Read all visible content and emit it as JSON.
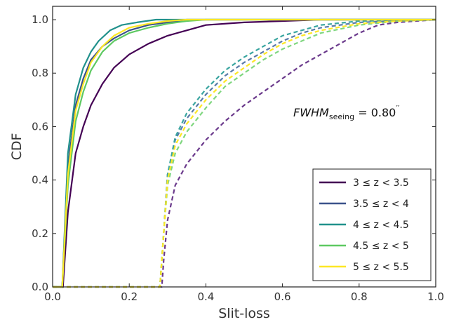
{
  "chart_data": {
    "type": "line",
    "xlabel": "Slit-loss",
    "ylabel": "CDF",
    "xlim": [
      0.0,
      1.0
    ],
    "ylim": [
      0.0,
      1.05
    ],
    "xticks": [
      "0.0",
      "0.2",
      "0.4",
      "0.6",
      "0.8",
      "1.0"
    ],
    "yticks": [
      "0.0",
      "0.2",
      "0.4",
      "0.6",
      "0.8",
      "1.0"
    ],
    "grid": false,
    "legend_position": "lower-right",
    "annotation": {
      "main": "FWHM",
      "sub": "seeing",
      "rest": " = 0.80",
      "sup": "′′"
    },
    "series": [
      {
        "name": "3 ≤ z < 3.5",
        "color": "#440154",
        "style": "solid",
        "x": [
          0.0,
          0.027,
          0.04,
          0.06,
          0.08,
          0.1,
          0.13,
          0.16,
          0.2,
          0.25,
          0.3,
          0.35,
          0.4,
          0.5,
          0.6,
          0.7,
          1.0
        ],
        "y": [
          0.0,
          0.0,
          0.28,
          0.5,
          0.6,
          0.68,
          0.76,
          0.82,
          0.87,
          0.91,
          0.94,
          0.96,
          0.98,
          0.99,
          0.995,
          1.0,
          1.0
        ]
      },
      {
        "name": "3 ≤ z < 3.5",
        "color": "#6b3a8c",
        "style": "dashed",
        "x": [
          0.0,
          0.285,
          0.29,
          0.3,
          0.32,
          0.35,
          0.4,
          0.45,
          0.5,
          0.55,
          0.6,
          0.65,
          0.7,
          0.75,
          0.8,
          0.85,
          0.9,
          1.0
        ],
        "y": [
          0.0,
          0.0,
          0.1,
          0.25,
          0.38,
          0.46,
          0.55,
          0.62,
          0.68,
          0.73,
          0.78,
          0.83,
          0.87,
          0.91,
          0.95,
          0.98,
          0.99,
          1.0
        ]
      },
      {
        "name": "3.5 ≤ z < 4",
        "color": "#3b528b",
        "style": "solid",
        "x": [
          0.0,
          0.025,
          0.04,
          0.06,
          0.08,
          0.1,
          0.13,
          0.16,
          0.2,
          0.25,
          0.3,
          0.35,
          0.4,
          1.0
        ],
        "y": [
          0.0,
          0.0,
          0.45,
          0.68,
          0.78,
          0.85,
          0.9,
          0.93,
          0.96,
          0.98,
          0.99,
          1.0,
          1.0,
          1.0
        ]
      },
      {
        "name": "3.5 ≤ z < 4",
        "color": "#5a7aa8",
        "style": "dashed",
        "x": [
          0.0,
          0.28,
          0.29,
          0.3,
          0.32,
          0.35,
          0.4,
          0.45,
          0.5,
          0.55,
          0.6,
          0.65,
          0.7,
          0.8,
          0.9,
          1.0
        ],
        "y": [
          0.0,
          0.0,
          0.2,
          0.42,
          0.55,
          0.63,
          0.72,
          0.79,
          0.84,
          0.88,
          0.92,
          0.95,
          0.97,
          0.99,
          0.995,
          1.0
        ]
      },
      {
        "name": "4 ≤ z < 4.5",
        "color": "#21918c",
        "style": "solid",
        "x": [
          0.0,
          0.025,
          0.04,
          0.06,
          0.08,
          0.1,
          0.12,
          0.15,
          0.18,
          0.22,
          0.27,
          0.32,
          1.0
        ],
        "y": [
          0.0,
          0.0,
          0.5,
          0.72,
          0.82,
          0.88,
          0.92,
          0.96,
          0.98,
          0.99,
          1.0,
          1.0,
          1.0
        ]
      },
      {
        "name": "4 ≤ z < 4.5",
        "color": "#3aa5a0",
        "style": "dashed",
        "x": [
          0.0,
          0.28,
          0.29,
          0.3,
          0.32,
          0.35,
          0.4,
          0.45,
          0.5,
          0.55,
          0.6,
          0.65,
          0.7,
          0.8,
          1.0
        ],
        "y": [
          0.0,
          0.0,
          0.2,
          0.42,
          0.56,
          0.65,
          0.74,
          0.81,
          0.86,
          0.9,
          0.94,
          0.96,
          0.98,
          0.995,
          1.0
        ]
      },
      {
        "name": "4.5 ≤ z < 5",
        "color": "#5ec962",
        "style": "solid",
        "x": [
          0.0,
          0.025,
          0.04,
          0.06,
          0.08,
          0.1,
          0.13,
          0.16,
          0.2,
          0.25,
          0.3,
          0.35,
          0.4,
          1.0
        ],
        "y": [
          0.0,
          0.0,
          0.38,
          0.62,
          0.73,
          0.81,
          0.88,
          0.92,
          0.95,
          0.97,
          0.985,
          0.995,
          1.0,
          1.0
        ]
      },
      {
        "name": "4.5 ≤ z < 5",
        "color": "#7fd67f",
        "style": "dashed",
        "x": [
          0.0,
          0.28,
          0.29,
          0.3,
          0.32,
          0.35,
          0.4,
          0.45,
          0.5,
          0.55,
          0.6,
          0.65,
          0.7,
          0.8,
          0.9,
          1.0
        ],
        "y": [
          0.0,
          0.0,
          0.2,
          0.38,
          0.5,
          0.58,
          0.67,
          0.75,
          0.8,
          0.85,
          0.89,
          0.92,
          0.95,
          0.98,
          0.995,
          1.0
        ]
      },
      {
        "name": "5 ≤ z < 5.5",
        "color": "#fde725",
        "style": "solid",
        "x": [
          0.0,
          0.025,
          0.04,
          0.06,
          0.08,
          0.1,
          0.13,
          0.16,
          0.2,
          0.25,
          0.3,
          0.35,
          1.0
        ],
        "y": [
          0.0,
          0.0,
          0.42,
          0.66,
          0.76,
          0.84,
          0.9,
          0.94,
          0.97,
          0.985,
          0.995,
          1.0,
          1.0
        ]
      },
      {
        "name": "5 ≤ z < 5.5",
        "color": "#fde725",
        "style": "dashed",
        "x": [
          0.0,
          0.28,
          0.29,
          0.3,
          0.32,
          0.35,
          0.4,
          0.45,
          0.5,
          0.55,
          0.6,
          0.65,
          0.7,
          0.8,
          0.9,
          1.0
        ],
        "y": [
          0.0,
          0.0,
          0.2,
          0.4,
          0.53,
          0.61,
          0.7,
          0.77,
          0.82,
          0.87,
          0.91,
          0.94,
          0.96,
          0.985,
          0.995,
          1.0
        ]
      }
    ],
    "legend": [
      {
        "label": "3 ≤ z < 3.5",
        "color": "#440154"
      },
      {
        "label": "3.5 ≤ z < 4",
        "color": "#3b528b"
      },
      {
        "label": "4 ≤ z < 4.5",
        "color": "#21918c"
      },
      {
        "label": "4.5 ≤ z < 5",
        "color": "#5ec962"
      },
      {
        "label": "5 ≤ z < 5.5",
        "color": "#fde725"
      }
    ]
  }
}
